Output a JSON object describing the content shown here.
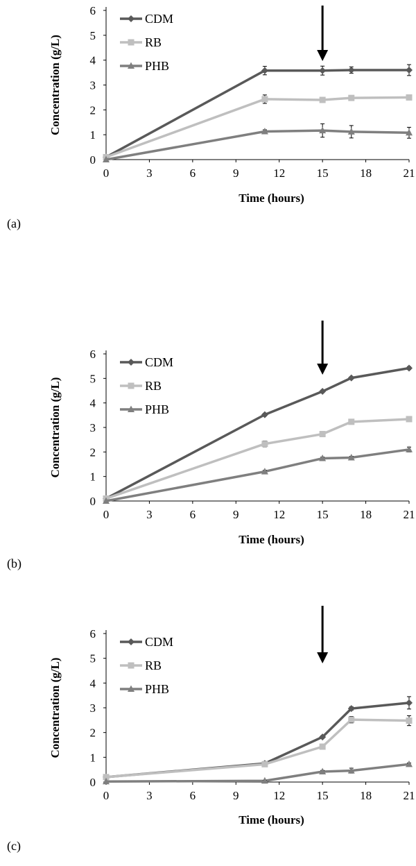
{
  "chart_data": [
    {
      "panel_label": "(a)",
      "type": "line",
      "xlabel": "Time (hours)",
      "ylabel": "Concentration (g/L)",
      "xlim": [
        0,
        21
      ],
      "ylim": [
        0,
        6
      ],
      "x_ticks": [
        0,
        3,
        6,
        9,
        12,
        15,
        18,
        21
      ],
      "y_ticks": [
        0,
        1,
        2,
        3,
        4,
        5,
        6
      ],
      "legend_position": "top-left",
      "annotations": [
        {
          "type": "arrow-down",
          "x": 15
        }
      ],
      "x": [
        0,
        11,
        15,
        17,
        21
      ],
      "series": [
        {
          "name": "CDM",
          "marker": "diamond",
          "color": "#595959",
          "values": [
            0.1,
            3.58,
            3.58,
            3.6,
            3.6
          ],
          "errors": [
            0,
            0.17,
            0.18,
            0.13,
            0.22
          ]
        },
        {
          "name": "RB",
          "marker": "square",
          "color": "#bfbfbf",
          "values": [
            0.1,
            2.43,
            2.4,
            2.48,
            2.5
          ],
          "errors": [
            0,
            0.17,
            0.08,
            0.1,
            0.07
          ]
        },
        {
          "name": "PHB",
          "marker": "triangle",
          "color": "#7f7f7f",
          "values": [
            0,
            1.13,
            1.17,
            1.12,
            1.08
          ],
          "errors": [
            0,
            0.07,
            0.27,
            0.25,
            0.22
          ]
        }
      ]
    },
    {
      "panel_label": "(b)",
      "type": "line",
      "xlabel": "Time (hours)",
      "ylabel": "Concentration (g/L)",
      "xlim": [
        0,
        21
      ],
      "ylim": [
        0,
        6
      ],
      "x_ticks": [
        0,
        3,
        6,
        9,
        12,
        15,
        18,
        21
      ],
      "y_ticks": [
        0,
        1,
        2,
        3,
        4,
        5,
        6
      ],
      "legend_position": "top-left",
      "annotations": [
        {
          "type": "arrow-down",
          "x": 15
        }
      ],
      "x": [
        0,
        11,
        15,
        17,
        21
      ],
      "series": [
        {
          "name": "CDM",
          "marker": "diamond",
          "color": "#595959",
          "values": [
            0.1,
            3.52,
            4.47,
            5.02,
            5.42
          ],
          "errors": [
            0,
            0.05,
            0.05,
            0.05,
            0.06
          ]
        },
        {
          "name": "RB",
          "marker": "square",
          "color": "#bfbfbf",
          "values": [
            0.1,
            2.33,
            2.73,
            3.23,
            3.34
          ],
          "errors": [
            0,
            0.12,
            0.06,
            0.05,
            0.05
          ]
        },
        {
          "name": "PHB",
          "marker": "triangle",
          "color": "#7f7f7f",
          "values": [
            0,
            1.2,
            1.74,
            1.77,
            2.1
          ],
          "errors": [
            0,
            0.05,
            0.05,
            0.05,
            0.1
          ]
        }
      ]
    },
    {
      "panel_label": "(c)",
      "type": "line",
      "xlabel": "Time (hours)",
      "ylabel": "Concentration (g/L)",
      "xlim": [
        0,
        21
      ],
      "ylim": [
        0,
        6
      ],
      "x_ticks": [
        0,
        3,
        6,
        9,
        12,
        15,
        18,
        21
      ],
      "y_ticks": [
        0,
        1,
        2,
        3,
        4,
        5,
        6
      ],
      "legend_position": "top-left",
      "annotations": [
        {
          "type": "arrow-down",
          "x": 15
        }
      ],
      "x": [
        0,
        11,
        15,
        17,
        21
      ],
      "series": [
        {
          "name": "CDM",
          "marker": "diamond",
          "color": "#595959",
          "values": [
            0.2,
            0.75,
            1.82,
            2.97,
            3.2
          ],
          "errors": [
            0,
            0.08,
            0.05,
            0.07,
            0.25
          ]
        },
        {
          "name": "RB",
          "marker": "square",
          "color": "#bfbfbf",
          "values": [
            0.2,
            0.72,
            1.43,
            2.52,
            2.48
          ],
          "errors": [
            0,
            0.08,
            0.05,
            0.13,
            0.2
          ]
        },
        {
          "name": "PHB",
          "marker": "triangle",
          "color": "#7f7f7f",
          "values": [
            0.02,
            0.05,
            0.42,
            0.46,
            0.72
          ],
          "errors": [
            0,
            0.02,
            0.05,
            0.1,
            0.05
          ]
        }
      ]
    }
  ]
}
